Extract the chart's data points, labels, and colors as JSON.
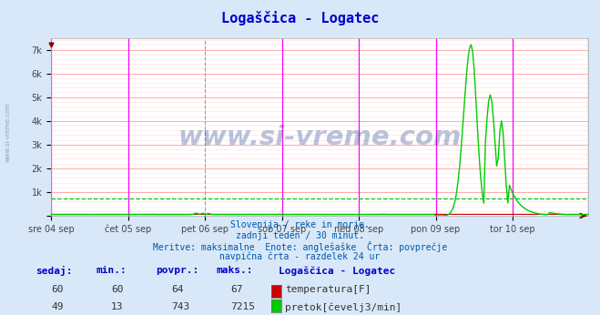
{
  "title": "Logaščica - Logatec",
  "title_color": "#0000cc",
  "bg_color": "#d8e8f8",
  "plot_bg_color": "#ffffff",
  "grid_color_major": "#ffaaaa",
  "grid_color_minor": "#ffdddd",
  "ylim": [
    0,
    7500
  ],
  "yticks": [
    0,
    1000,
    2000,
    3000,
    4000,
    5000,
    6000,
    7000
  ],
  "ytick_labels": [
    "",
    "1k",
    "2k",
    "3k",
    "4k",
    "5k",
    "6k",
    "7k"
  ],
  "n_points": 336,
  "day_labels": [
    "sre 04 sep",
    "čet 05 sep",
    "pet 06 sep",
    "sob 07 sep",
    "ned 08 sep",
    "pon 09 sep",
    "tor 10 sep"
  ],
  "day_positions": [
    0,
    48,
    96,
    144,
    192,
    240,
    288
  ],
  "magenta_vlines": [
    0,
    48,
    144,
    192,
    240,
    288
  ],
  "dashed_vline": 96,
  "temp_color": "#cc0000",
  "flow_color": "#00cc00",
  "avg_flow_value": 743,
  "avg_temp_value": 64,
  "watermark_text": "www.si-vreme.com",
  "watermark_color": "#1a3a8a",
  "watermark_alpha": 0.3,
  "subtitle_lines": [
    "Slovenija / reke in morje.",
    "zadnji teden / 30 minut.",
    "Meritve: maksimalne  Enote: anglešaške  Črta: povprečje",
    "navpična črta - razdelek 24 ur"
  ],
  "subtitle_color": "#0055aa",
  "legend_title": "Logaščica - Logatec",
  "legend_items": [
    {
      "label": "temperatura[F]",
      "color": "#cc0000"
    },
    {
      "label": "pretok[čevelj3/min]",
      "color": "#00cc00"
    }
  ],
  "table_headers": [
    "sedaj:",
    "min.:",
    "povpr.:",
    "maks.:"
  ],
  "table_values_temp": [
    60,
    60,
    64,
    67
  ],
  "table_values_flow": [
    49,
    13,
    743,
    7215
  ],
  "table_color": "#0000cc",
  "sidebar_text": "www.si-vreme.com",
  "sidebar_color": "#7799bb",
  "arrow_color": "#880000"
}
